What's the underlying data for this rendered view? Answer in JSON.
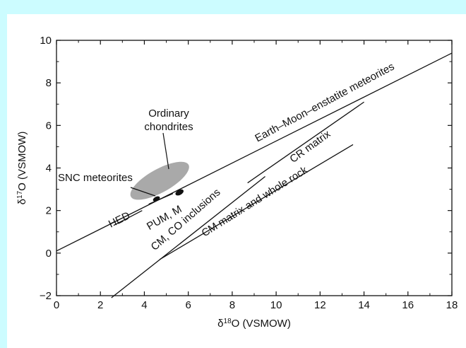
{
  "chart_data": {
    "type": "scatter",
    "xlabel": "δ18O (VSMOW)",
    "ylabel": "δ17O (VSMOW)",
    "xlim": [
      0,
      18
    ],
    "ylim": [
      -2,
      10
    ],
    "x_ticks": [
      0,
      2,
      4,
      6,
      8,
      10,
      12,
      14,
      16,
      18
    ],
    "y_ticks": [
      -2,
      0,
      2,
      4,
      6,
      8,
      10
    ],
    "grid": false,
    "lines": [
      {
        "name": "Earth–Moon–enstatite meteorites",
        "x": [
          0,
          18
        ],
        "y": [
          0.1,
          9.4
        ]
      },
      {
        "name": "CM, CO inclusions",
        "x": [
          2.5,
          9.5
        ],
        "y": [
          -2.1,
          3.6
        ]
      },
      {
        "name": "CR matrix",
        "x": [
          8.7,
          14.0
        ],
        "y": [
          3.3,
          7.1
        ]
      },
      {
        "name": "CM matrix and whole rock",
        "x": [
          4.7,
          13.5
        ],
        "y": [
          -0.3,
          5.1
        ]
      },
      {
        "name": "HED",
        "x": [
          2.6,
          3.9
        ],
        "y": [
          1.3,
          2.0
        ]
      },
      {
        "name": "PUM, M",
        "x": [
          4.2,
          5.3
        ],
        "y": [
          2.3,
          2.8
        ]
      }
    ],
    "regions": [
      {
        "name": "Ordinary chondrites",
        "cx": 4.7,
        "cy": 3.4,
        "rx": 1.5,
        "ry": 0.55,
        "angle_deg": -29,
        "color": "#a9a9a9"
      },
      {
        "name": "PUM, M",
        "cx": 5.6,
        "cy": 2.85,
        "rx": 0.2,
        "ry": 0.12,
        "angle_deg": -28,
        "color": "#111111"
      },
      {
        "name": "SNC meteorites",
        "cx": 4.55,
        "cy": 2.55,
        "rx": 0.17,
        "ry": 0.1,
        "angle_deg": -28,
        "color": "#111111"
      }
    ],
    "annotations": [
      {
        "id": "oc",
        "text_lines": [
          "Ordinary",
          "chondrites"
        ]
      },
      {
        "id": "snc",
        "text": "SNC meteorites"
      },
      {
        "id": "emem",
        "text": "Earth–Moon–enstatite meteorites"
      },
      {
        "id": "cr",
        "text": "CR matrix"
      },
      {
        "id": "pum",
        "text": "PUM, M"
      },
      {
        "id": "hed",
        "text": "HED"
      },
      {
        "id": "cmco",
        "text": "CM, CO inclusions"
      },
      {
        "id": "cmwr",
        "text": "CM matrix and whole rock"
      }
    ]
  }
}
